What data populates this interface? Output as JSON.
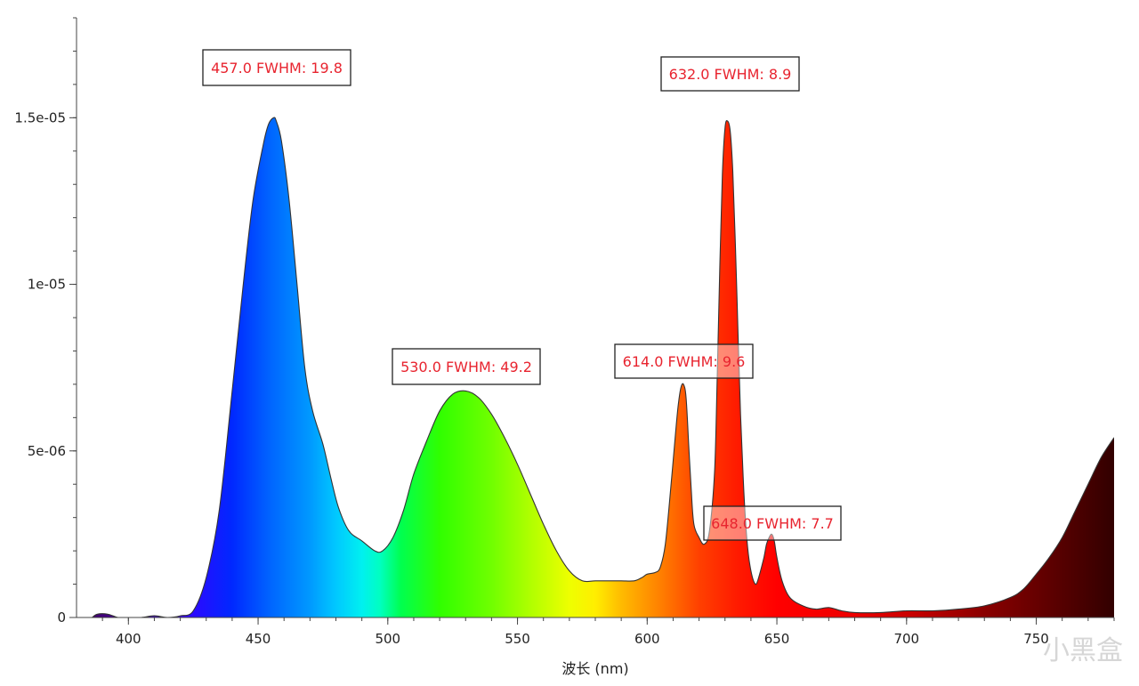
{
  "watermark": "小黑盒",
  "chart_data": {
    "type": "area",
    "title": "",
    "xlabel": "波长 (nm)",
    "ylabel": "",
    "xlim": [
      380,
      780
    ],
    "ylim": [
      0,
      1.8e-05
    ],
    "x_ticks": [
      400,
      450,
      500,
      550,
      600,
      650,
      700,
      750
    ],
    "x_tick_labels": [
      "400",
      "450",
      "500",
      "550",
      "600",
      "650",
      "700",
      "750"
    ],
    "y_ticks": [
      0,
      5e-06,
      1e-05,
      1.5e-05
    ],
    "y_tick_labels": [
      "0",
      "5e-06",
      "1e-05",
      "1.5e-05"
    ],
    "grid": false,
    "fill": "spectral colors by wavelength",
    "line_color": "#333333",
    "annotation_color": "#e8242f",
    "series": [
      {
        "x": [
          386,
          388,
          392,
          396,
          400,
          405,
          410,
          415,
          420,
          425,
          430,
          435,
          440,
          444,
          448,
          452,
          454,
          456,
          457,
          459,
          462,
          465,
          468,
          471,
          475,
          478,
          481,
          485,
          490,
          495,
          498,
          502,
          506,
          510,
          515,
          520,
          525,
          530,
          535,
          540,
          545,
          550,
          555,
          560,
          565,
          570,
          575,
          580,
          585,
          590,
          595,
          598,
          600,
          603,
          605,
          607,
          609,
          611,
          612,
          613,
          614,
          615,
          616,
          617,
          618,
          620,
          622,
          624,
          626,
          627,
          628,
          629,
          630,
          631,
          632,
          633,
          634,
          635,
          636,
          637,
          638,
          639,
          640,
          641,
          642,
          643,
          645,
          646,
          647,
          648,
          649,
          650,
          652,
          655,
          660,
          665,
          670,
          675,
          680,
          690,
          700,
          710,
          720,
          730,
          740,
          745,
          750,
          755,
          760,
          765,
          770,
          775,
          780
        ],
        "values": [
          0,
          1e-07,
          1e-07,
          0,
          0,
          0,
          5e-08,
          0,
          5e-08,
          2e-07,
          1.2e-06,
          3.2e-06,
          6.8e-06,
          9.8e-06,
          1.25e-05,
          1.42e-05,
          1.48e-05,
          1.5e-05,
          1.49e-05,
          1.43e-05,
          1.25e-05,
          1e-05,
          7.5e-06,
          6.2e-06,
          5.2e-06,
          4.2e-06,
          3.3e-06,
          2.6e-06,
          2.3e-06,
          2e-06,
          2e-06,
          2.4e-06,
          3.2e-06,
          4.3e-06,
          5.3e-06,
          6.2e-06,
          6.7e-06,
          6.8e-06,
          6.6e-06,
          6.1e-06,
          5.4e-06,
          4.6e-06,
          3.7e-06,
          2.8e-06,
          2e-06,
          1.4e-06,
          1.1e-06,
          1.1e-06,
          1.1e-06,
          1.1e-06,
          1.1e-06,
          1.2e-06,
          1.3e-06,
          1.35e-06,
          1.5e-06,
          2.2e-06,
          3.8e-06,
          5.6e-06,
          6.4e-06,
          6.9e-06,
          7e-06,
          6.6e-06,
          5.2e-06,
          3.8e-06,
          2.8e-06,
          2.4e-06,
          2.2e-06,
          2.6e-06,
          4.4e-06,
          7.2e-06,
          1.05e-05,
          1.33e-05,
          1.47e-05,
          1.49e-05,
          1.46e-05,
          1.34e-05,
          1.12e-05,
          8.6e-06,
          6.1e-06,
          4.2e-06,
          2.8e-06,
          1.9e-06,
          1.4e-06,
          1.1e-06,
          1e-06,
          1.2e-06,
          1.8e-06,
          2.2e-06,
          2.4e-06,
          2.5e-06,
          2.3e-06,
          1.8e-06,
          1.1e-06,
          6e-07,
          3.5e-07,
          2.5e-07,
          3e-07,
          2e-07,
          1.5e-07,
          1.5e-07,
          2e-07,
          2e-07,
          2.5e-07,
          3.5e-07,
          6e-07,
          8.5e-07,
          1.3e-06,
          1.8e-06,
          2.4e-06,
          3.2e-06,
          4e-06,
          4.8e-06,
          5.4e-06
        ]
      }
    ],
    "annotations": [
      {
        "text": "457.0 FWHM: 19.8",
        "x": 457
      },
      {
        "text": "530.0 FWHM: 49.2",
        "x": 530
      },
      {
        "text": "614.0 FWHM: 9.6",
        "x": 614
      },
      {
        "text": "632.0 FWHM: 8.9",
        "x": 632
      },
      {
        "text": "648.0 FWHM: 7.7",
        "x": 648
      }
    ]
  }
}
